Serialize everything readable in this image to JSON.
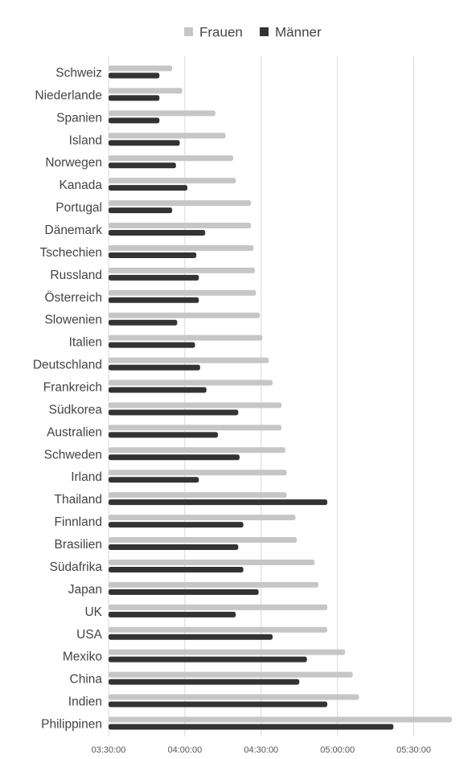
{
  "chart_data": {
    "type": "bar",
    "orientation": "horizontal",
    "categories": [
      "Schweiz",
      "Niederlande",
      "Spanien",
      "Island",
      "Norwegen",
      "Kanada",
      "Portugal",
      "Dänemark",
      "Tschechien",
      "Russland",
      "Österreich",
      "Slowenien",
      "Italien",
      "Deutschland",
      "Frankreich",
      "Südkorea",
      "Australien",
      "Schweden",
      "Irland",
      "Thailand",
      "Finnland",
      "Brasilien",
      "Südafrika",
      "Japan",
      "UK",
      "USA",
      "Mexiko",
      "China",
      "Indien",
      "Philippinen"
    ],
    "series": [
      {
        "name": "Frauen",
        "color": "#c6c6c6",
        "values": [
          "03:55:00",
          "03:59:00",
          "04:12:00",
          "04:16:00",
          "04:19:00",
          "04:20:00",
          "04:26:00",
          "04:26:00",
          "04:27:00",
          "04:27:30",
          "04:28:00",
          "04:29:30",
          "04:30:30",
          "04:33:00",
          "04:34:30",
          "04:38:00",
          "04:38:00",
          "04:39:30",
          "04:40:00",
          "04:40:00",
          "04:43:30",
          "04:44:00",
          "04:51:00",
          "04:52:30",
          "04:56:00",
          "04:56:00",
          "05:03:00",
          "05:06:00",
          "05:08:30",
          "05:45:00"
        ]
      },
      {
        "name": "Männer",
        "color": "#333333",
        "values": [
          "03:50:00",
          "03:50:00",
          "03:50:00",
          "03:58:00",
          "03:56:30",
          "04:01:00",
          "03:55:00",
          "04:08:00",
          "04:04:30",
          "04:05:30",
          "04:05:30",
          "03:57:00",
          "04:04:00",
          "04:06:00",
          "04:08:30",
          "04:21:00",
          "04:13:00",
          "04:21:30",
          "04:05:30",
          "04:56:00",
          "04:23:00",
          "04:21:00",
          "04:23:00",
          "04:29:00",
          "04:20:00",
          "04:34:30",
          "04:48:00",
          "04:45:00",
          "04:56:00",
          "05:22:00"
        ]
      }
    ],
    "xlim": [
      "03:30:00",
      "05:45:00"
    ],
    "xticks": [
      "03:30:00",
      "04:00:00",
      "04:30:00",
      "05:00:00",
      "05:30:00"
    ],
    "grid": true,
    "legend": "top-center"
  }
}
